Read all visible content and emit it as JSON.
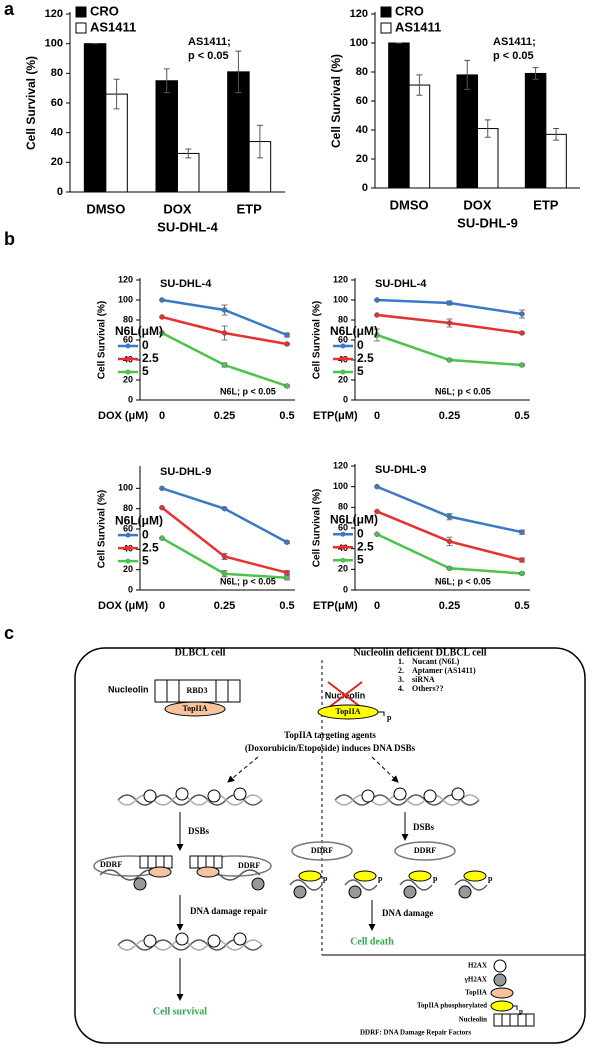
{
  "panel_labels": [
    "a",
    "b",
    "c"
  ],
  "chart_data": [
    {
      "type": "bar",
      "x_label": "SU-DHL-4",
      "y_label": "Cell Survival (%)",
      "categories": [
        "DMSO",
        "DOX",
        "ETP"
      ],
      "series": [
        {
          "name": "CRO",
          "color": "#000000",
          "values": [
            100,
            75,
            81
          ],
          "errors": [
            0,
            8,
            14
          ]
        },
        {
          "name": "AS1411",
          "color": "#ffffff",
          "values": [
            66,
            26,
            34
          ],
          "errors": [
            10,
            3,
            11
          ]
        }
      ],
      "annotation": [
        "AS1411;",
        "p < 0.05"
      ],
      "legend": "top-left",
      "ylim": [
        0,
        120
      ],
      "yticks": [
        0,
        20,
        40,
        60,
        80,
        100,
        120
      ]
    },
    {
      "type": "bar",
      "x_label": "SU-DHL-9",
      "y_label": "Cell Survival (%)",
      "categories": [
        "DMSO",
        "DOX",
        "ETP"
      ],
      "series": [
        {
          "name": "CRO",
          "color": "#000000",
          "values": [
            100,
            78,
            79
          ],
          "errors": [
            0,
            10,
            4
          ]
        },
        {
          "name": "AS1411",
          "color": "#ffffff",
          "values": [
            71,
            41,
            37
          ],
          "errors": [
            7,
            6,
            4
          ]
        }
      ],
      "annotation": [
        "AS1411;",
        "p < 0.05"
      ],
      "legend": "top-left",
      "ylim": [
        0,
        120
      ],
      "yticks": [
        0,
        20,
        40,
        60,
        80,
        100,
        120
      ]
    },
    {
      "type": "line",
      "title": "SU-DHL-4",
      "x_label": "DOX (μM)",
      "y_label": "Cell Survival (%)",
      "categories": [
        "0",
        "0.25",
        "0.5"
      ],
      "legend_title": "N6L(μM)",
      "legend": "left",
      "series": [
        {
          "name": "0",
          "color": "#3b79c8",
          "values": [
            100,
            90,
            65
          ],
          "errors": [
            0,
            5,
            2
          ]
        },
        {
          "name": "2.5",
          "color": "#e8312d",
          "values": [
            83,
            67,
            56
          ],
          "errors": [
            0,
            7,
            1
          ]
        },
        {
          "name": "5",
          "color": "#4cc44c",
          "values": [
            67,
            35,
            14
          ],
          "errors": [
            0,
            2,
            1
          ]
        }
      ],
      "annotation": [
        "N6L; p < 0.05"
      ],
      "ylim": [
        0,
        120
      ],
      "yticks": [
        0,
        20,
        40,
        60,
        80,
        100,
        120
      ]
    },
    {
      "type": "line",
      "title": "SU-DHL-4",
      "x_label": "ETP(μM)",
      "y_label": "Cell Survival (%)",
      "categories": [
        "0",
        "0.25",
        "0.5"
      ],
      "legend_title": "N6L(μM)",
      "legend": "left",
      "series": [
        {
          "name": "0",
          "color": "#3b79c8",
          "values": [
            100,
            97,
            86
          ],
          "errors": [
            0,
            2,
            4
          ]
        },
        {
          "name": "2.5",
          "color": "#e8312d",
          "values": [
            85,
            77,
            67
          ],
          "errors": [
            0,
            4,
            1
          ]
        },
        {
          "name": "5",
          "color": "#4cc44c",
          "values": [
            65,
            40,
            35
          ],
          "errors": [
            6,
            1,
            1
          ]
        }
      ],
      "annotation": [
        "N6L; p < 0.05"
      ],
      "ylim": [
        0,
        120
      ],
      "yticks": [
        0,
        20,
        40,
        60,
        80,
        100,
        120
      ]
    },
    {
      "type": "line",
      "title": "SU-DHL-9",
      "x_label": "DOX (μM)",
      "y_label": "Cell Survival (%)",
      "categories": [
        "0",
        "0.25",
        "0.5"
      ],
      "legend_title": "N6L(μM)",
      "legend": "left",
      "series": [
        {
          "name": "0",
          "color": "#3b79c8",
          "values": [
            100,
            80,
            47
          ],
          "errors": [
            0,
            1,
            1
          ]
        },
        {
          "name": "2.5",
          "color": "#e8312d",
          "values": [
            81,
            33,
            17
          ],
          "errors": [
            0,
            3,
            2
          ]
        },
        {
          "name": "5",
          "color": "#4cc44c",
          "values": [
            51,
            16,
            12
          ],
          "errors": [
            0,
            3,
            2
          ]
        }
      ],
      "annotation": [
        "N6L; p < 0.05"
      ],
      "ylim": [
        0,
        120
      ],
      "yticks": [
        0,
        20,
        40,
        60,
        80,
        100
      ]
    },
    {
      "type": "line",
      "title": "SU-DHL-9",
      "x_label": "ETP(μM)",
      "y_label": "Cell Survival (%)",
      "categories": [
        "0",
        "0.25",
        "0.5"
      ],
      "legend_title": "N6L(μM)",
      "legend": "left",
      "series": [
        {
          "name": "0",
          "color": "#3b79c8",
          "values": [
            100,
            71,
            56
          ],
          "errors": [
            0,
            3,
            2
          ]
        },
        {
          "name": "2.5",
          "color": "#e8312d",
          "values": [
            76,
            47,
            29
          ],
          "errors": [
            0,
            4,
            2
          ]
        },
        {
          "name": "5",
          "color": "#4cc44c",
          "values": [
            54,
            21,
            16
          ],
          "errors": [
            0,
            1,
            1
          ]
        }
      ],
      "annotation": [
        "N6L; p < 0.05"
      ],
      "ylim": [
        0,
        120
      ],
      "yticks": [
        0,
        20,
        40,
        60,
        80,
        100,
        120
      ]
    }
  ],
  "diagram": {
    "left_title": "DLBCL cell",
    "right_title": "Nucleolin deficient DLBCL cell",
    "nucleolin": "Nucleolin",
    "rbd3": "RBD3",
    "topiia": "TopIIA",
    "phospho": "p",
    "inhibitors": [
      {
        "n": "1.",
        "text": "Nucant (N6L)"
      },
      {
        "n": "2.",
        "text": "Aptamer (AS1411)"
      },
      {
        "n": "3.",
        "text": "siRNA"
      },
      {
        "n": "4.",
        "text": "Others??"
      }
    ],
    "agents": [
      "TopIIA targeting agents",
      "(Doxorubicin/Etoposide) induces DNA DSBs"
    ],
    "dsbs": "DSBs",
    "ddrf": "DDRF",
    "repair": "DNA damage repair",
    "survival": "Cell survival",
    "damage": "DNA damage",
    "death": "Cell death",
    "legend": {
      "h2ax": "H2AX",
      "gh2ax": "γH2AX",
      "topiia": "TopIIA",
      "topiia_p": "TopIIA phosphorylated",
      "nucleolin": "Nucleolin",
      "ddrf": "DDRF: DNA Damage Repair Factors"
    }
  }
}
